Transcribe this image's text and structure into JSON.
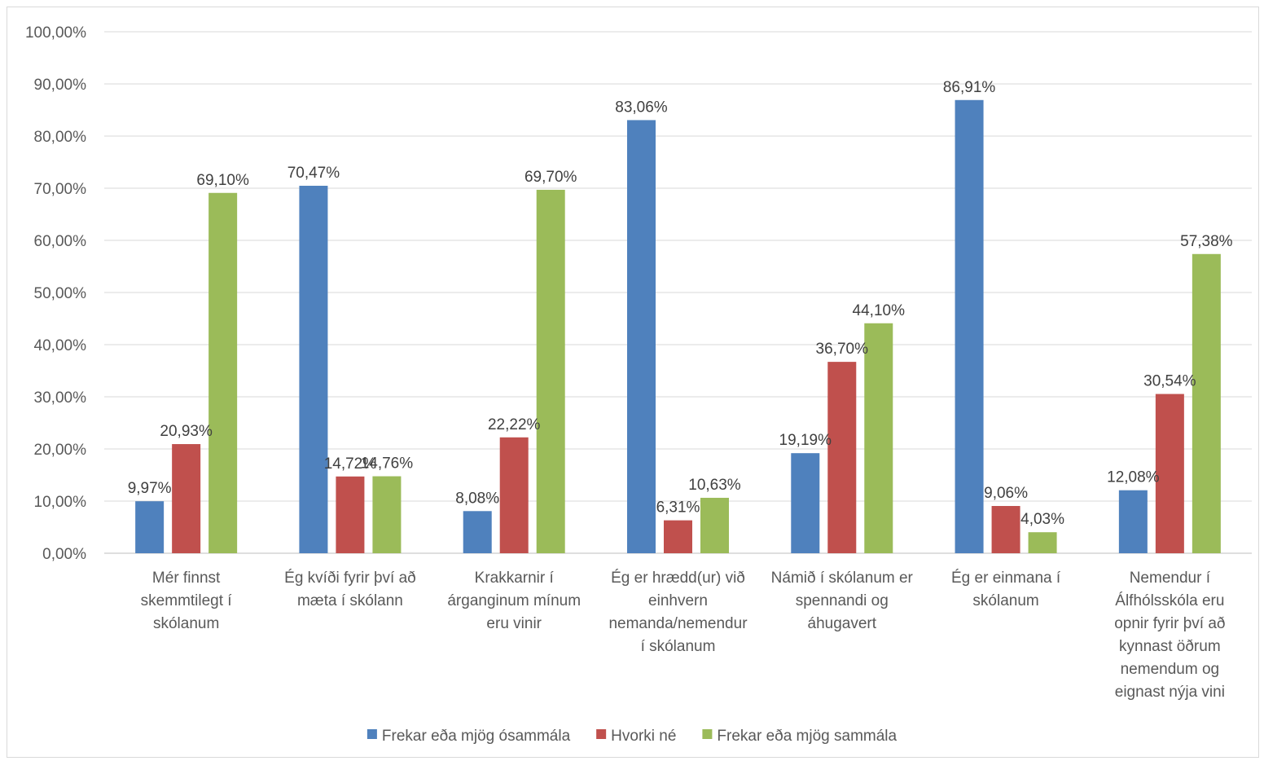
{
  "chart_data": {
    "type": "bar",
    "title": "",
    "xlabel": "",
    "ylabel": "",
    "ylim": [
      0,
      100
    ],
    "y_ticks": [
      "0,00%",
      "10,00%",
      "20,00%",
      "30,00%",
      "40,00%",
      "50,00%",
      "60,00%",
      "70,00%",
      "80,00%",
      "90,00%",
      "100,00%"
    ],
    "grid": true,
    "legend_position": "bottom",
    "categories": [
      [
        "Mér finnst",
        "skemmtilegt í",
        "skólanum"
      ],
      [
        "Ég kvíði fyrir því að",
        "mæta í skólann"
      ],
      [
        "Krakkarnir í",
        "árganginum mínum",
        "eru vinir"
      ],
      [
        "Ég er hrædd(ur) við",
        "einhvern",
        "nemanda/nemendur",
        "í skólanum"
      ],
      [
        "Námið í skólanum er",
        "spennandi og",
        "áhugavert"
      ],
      [
        "Ég er einmana í",
        "skólanum"
      ],
      [
        "Nemendur í",
        "Álfhólsskóla eru",
        "opnir fyrir því að",
        "kynnast öðrum",
        "nemendum og",
        "eignast nýja vini"
      ]
    ],
    "series": [
      {
        "name": "Frekar eða mjög ósammála",
        "color": "#4f81bd",
        "values": [
          9.97,
          70.47,
          8.08,
          83.06,
          19.19,
          86.91,
          12.08
        ],
        "labels": [
          "9,97%",
          "70,47%",
          "8,08%",
          "83,06%",
          "19,19%",
          "86,91%",
          "12,08%"
        ]
      },
      {
        "name": "Hvorki né",
        "color": "#c0504d",
        "values": [
          20.93,
          14.72,
          22.22,
          6.31,
          36.7,
          9.06,
          30.54
        ],
        "labels": [
          "20,93%",
          "14,72%",
          "22,22%",
          "6,31%",
          "36,70%",
          "9,06%",
          "30,54%"
        ]
      },
      {
        "name": "Frekar eða mjög sammála",
        "color": "#9bbb59",
        "values": [
          69.1,
          14.76,
          69.7,
          10.63,
          44.1,
          4.03,
          57.38
        ],
        "labels": [
          "69,10%",
          "14,76%",
          "69,70%",
          "10,63%",
          "44,10%",
          "4,03%",
          "57,38%"
        ]
      }
    ]
  }
}
